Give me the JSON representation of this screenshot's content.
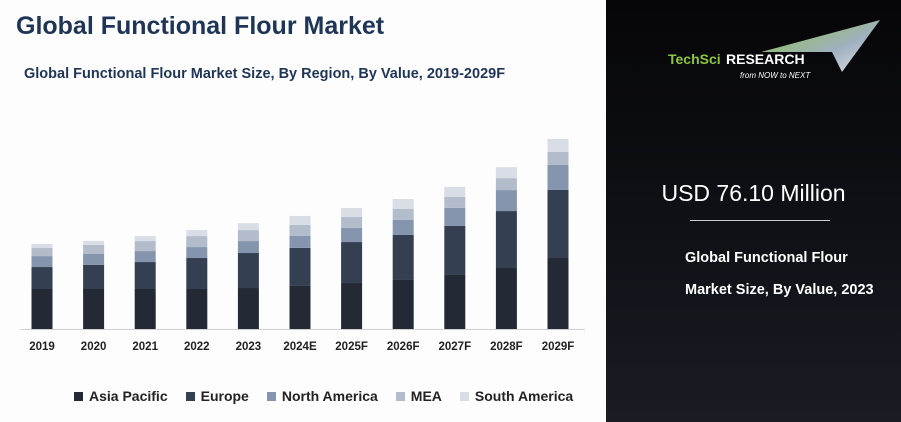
{
  "title": "Global Functional Flour Market",
  "logo": {
    "brand_a": "TechSci",
    "brand_b": "Research",
    "tagline": "from NOW to NEXT"
  },
  "highlight": {
    "value": "USD 76.10 Million",
    "description": "Global Functional Flour Market Size, By Value, 2023"
  },
  "chart_data": {
    "type": "bar",
    "stacked": true,
    "title": "Global Functional Flour Market Size, By Region, By Value, 2019-2029F",
    "categories": [
      "2019",
      "2020",
      "2021",
      "2022",
      "2023",
      "2024E",
      "2025F",
      "2026F",
      "2027F",
      "2028F",
      "2029F"
    ],
    "series": [
      {
        "name": "Asia Pacific",
        "color": "#232a36",
        "values": [
          28.8,
          28.8,
          28.8,
          28.8,
          29.5,
          31.0,
          33.1,
          35.3,
          38.9,
          43.9,
          51.1
        ]
      },
      {
        "name": "Europe",
        "color": "#343f52",
        "values": [
          15.8,
          17.3,
          19.4,
          22.3,
          25.2,
          27.4,
          29.5,
          32.4,
          35.3,
          41.0,
          49.0
        ]
      },
      {
        "name": "North America",
        "color": "#8595ad",
        "values": [
          7.9,
          7.9,
          7.9,
          7.9,
          8.6,
          8.6,
          10.1,
          10.8,
          13.0,
          15.1,
          18.0
        ]
      },
      {
        "name": "MEA",
        "color": "#b3bccb",
        "values": [
          5.8,
          6.5,
          7.2,
          7.9,
          7.9,
          7.9,
          7.9,
          7.9,
          7.9,
          8.6,
          9.4
        ]
      },
      {
        "name": "South America",
        "color": "#d9dde5",
        "values": [
          2.9,
          2.9,
          3.6,
          4.3,
          5.0,
          6.5,
          6.5,
          7.2,
          7.2,
          7.9,
          9.4
        ]
      }
    ],
    "unit": "USD Million",
    "legend": "bottom",
    "grid": false,
    "y_axis_visible": false
  }
}
